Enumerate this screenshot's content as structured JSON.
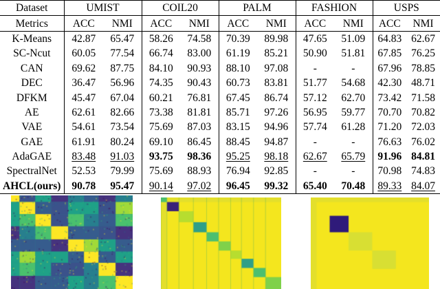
{
  "table": {
    "header": {
      "dataset_label": "Dataset",
      "datasets": [
        "UMIST",
        "COIL20",
        "PALM",
        "FASHION",
        "USPS"
      ]
    },
    "subheader": {
      "metrics_label": "Metrics",
      "metrics": [
        "ACC",
        "NMI",
        "ACC",
        "NMI",
        "ACC",
        "NMI",
        "ACC",
        "NMI",
        "ACC",
        "NMI"
      ]
    },
    "rows": [
      {
        "method": "K-Means",
        "values": [
          "42.87",
          "65.47",
          "58.26",
          "74.58",
          "70.39",
          "89.98",
          "47.65",
          "51.09",
          "64.83",
          "62.67"
        ],
        "bold": [],
        "underline": []
      },
      {
        "method": "SC-Ncut",
        "values": [
          "60.05",
          "77.54",
          "66.74",
          "83.00",
          "61.19",
          "85.21",
          "50.90",
          "51.81",
          "67.85",
          "76.25"
        ],
        "bold": [],
        "underline": []
      },
      {
        "method": "CAN",
        "values": [
          "69.62",
          "87.75",
          "84.10",
          "90.93",
          "88.10",
          "97.08",
          "-",
          "-",
          "67.96",
          "78.85"
        ],
        "bold": [],
        "underline": []
      },
      {
        "method": "DEC",
        "values": [
          "36.47",
          "56.96",
          "74.35",
          "90.43",
          "60.73",
          "83.81",
          "51.77",
          "54.68",
          "42.30",
          "48.71"
        ],
        "bold": [],
        "underline": []
      },
      {
        "method": "DFKM",
        "values": [
          "45.47",
          "67.04",
          "60.21",
          "76.81",
          "67.45",
          "86.74",
          "57.12",
          "62.70",
          "73.42",
          "71.58"
        ],
        "bold": [],
        "underline": []
      },
      {
        "method": "AE",
        "values": [
          "62.61",
          "82.66",
          "73.38",
          "81.81",
          "85.71",
          "97.26",
          "56.95",
          "59.77",
          "70.70",
          "70.82"
        ],
        "bold": [],
        "underline": []
      },
      {
        "method": "VAE",
        "values": [
          "54.61",
          "73.54",
          "75.69",
          "87.03",
          "83.15",
          "94.96",
          "57.74",
          "61.28",
          "71.20",
          "72.03"
        ],
        "bold": [],
        "underline": []
      },
      {
        "method": "GAE",
        "values": [
          "61.91",
          "80.24",
          "69.10",
          "86.45",
          "88.45",
          "94.87",
          "-",
          "-",
          "76.63",
          "76.02"
        ],
        "bold": [],
        "underline": []
      },
      {
        "method": "AdaGAE",
        "values": [
          "83.48",
          "91.03",
          "93.75",
          "98.36",
          "95.25",
          "98.18",
          "62.67",
          "65.79",
          "91.96",
          "84.81"
        ],
        "bold": [
          2,
          3,
          8,
          9
        ],
        "underline": [
          0,
          1,
          4,
          5,
          6,
          7
        ]
      },
      {
        "method": "SpectralNet",
        "values": [
          "52.53",
          "79.99",
          "75.69",
          "88.93",
          "76.94",
          "92.85",
          "-",
          "-",
          "70.98",
          "74.83"
        ],
        "bold": [],
        "underline": []
      },
      {
        "method": "AHCL(ours)",
        "method_bold": true,
        "values": [
          "90.78",
          "95.47",
          "90.14",
          "97.02",
          "96.45",
          "99.32",
          "65.40",
          "70.48",
          "89.33",
          "84.07"
        ],
        "bold": [
          0,
          1,
          4,
          5,
          6,
          7
        ],
        "underline": [
          2,
          3,
          8,
          9
        ]
      }
    ]
  },
  "heatmaps": [
    {
      "name": "heatmap-left",
      "palette": "viridis-full",
      "clusters": 8
    },
    {
      "name": "heatmap-middle",
      "palette": "yellow-dominant",
      "clusters": 10
    },
    {
      "name": "heatmap-right",
      "palette": "yellow-single-block",
      "clusters": 6
    }
  ]
}
